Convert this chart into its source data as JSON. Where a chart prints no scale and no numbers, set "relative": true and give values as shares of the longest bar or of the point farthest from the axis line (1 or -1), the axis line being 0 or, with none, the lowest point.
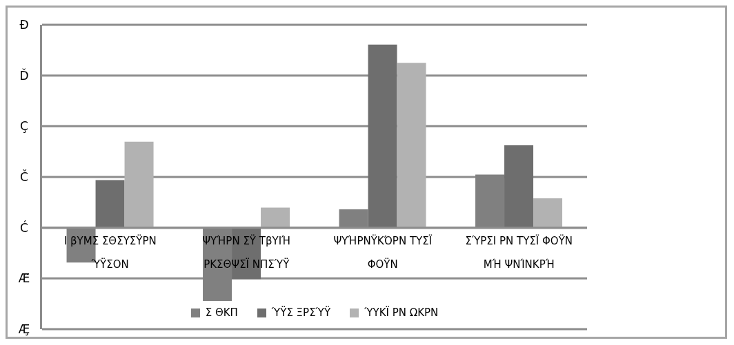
{
  "chart_data": {
    "type": "bar",
    "relative": true,
    "categories": [
      "Ι βΥΜΣ ΣΘΣΥΣΫΡΝ ΎΫΣΟΝ",
      "ΨΥΉΡΝ ΣΫ ΤβΥΙΉ ΡΚΣΘΨΣΪ ΝΠΣΎΫ",
      "ΨΥΉΡΝΫΚΌΡΝ ΤΥΣΪ ΦΟΫΝ",
      "ΣΎΡΣΙ ΡΝ ΤΥΣΪ ΦΟΫΝ ΜΉ ΨΝΊΝΚΡΉ"
    ],
    "series": [
      {
        "name": "Σ ΘΚΠ",
        "color": "#808080",
        "values": [
          -0.19,
          -0.4,
          0.1,
          0.29
        ]
      },
      {
        "name": "ΎΫΣ ΞΡΣΎΫ",
        "color": "#6e6e6e",
        "values": [
          0.26,
          -0.28,
          1,
          0.45
        ]
      },
      {
        "name": "ΎΥΚΪ ΡΝ ΩΚΡΝ",
        "color": "#b2b2b2",
        "values": [
          0.47,
          0.11,
          0.9,
          0.16
        ]
      }
    ],
    "annotations": [
      "Ð",
      "Ď",
      "Ç",
      "Č",
      "Ć",
      "Æ̃",
      "Æ̧"
    ],
    "grid": true,
    "legend": "bottom"
  }
}
